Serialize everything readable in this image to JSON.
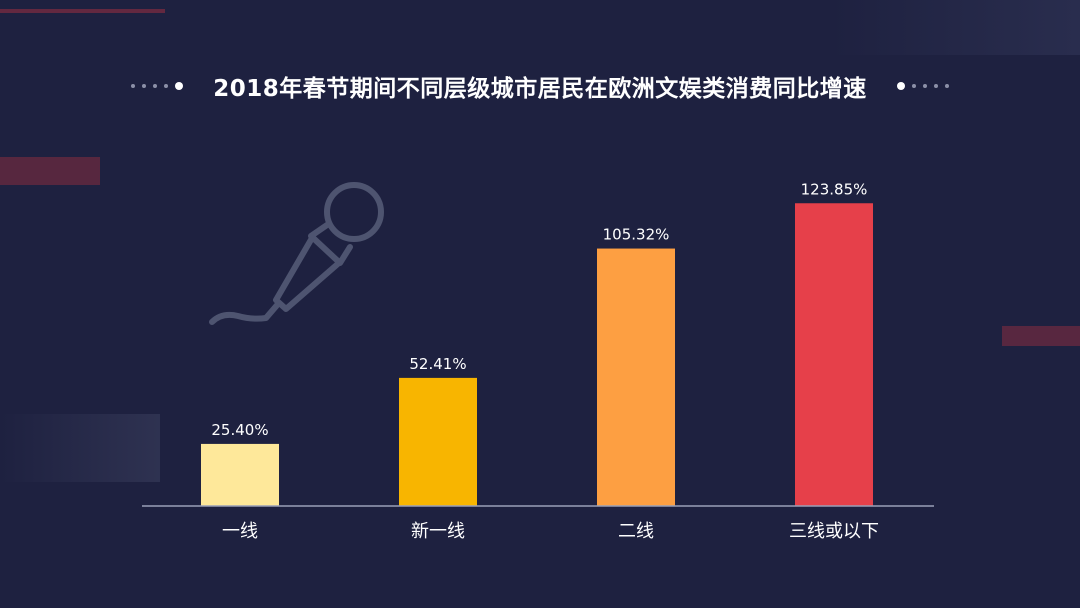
{
  "title": "2018年春节期间不同层级城市居民在欧洲文娱类消费同比增速",
  "icons": {
    "decoration": "microphone-icon"
  },
  "colors": {
    "background": "#1e2140",
    "axis": "#9aa0b8",
    "microphone": "#4e5470"
  },
  "chart_data": {
    "type": "bar",
    "title": "2018年春节期间不同层级城市居民在欧洲文娱类消费同比增速",
    "categories": [
      "一线",
      "新一线",
      "二线",
      "三线或以下"
    ],
    "values": [
      25.4,
      52.41,
      105.32,
      123.85
    ],
    "value_labels": [
      "25.40%",
      "52.41%",
      "105.32%",
      "123.85%"
    ],
    "bar_colors": [
      "#fee89a",
      "#f8b500",
      "#fd9f42",
      "#e6404a"
    ],
    "unit": "%",
    "ylim": [
      0,
      135
    ],
    "grid": false,
    "legend": "none"
  }
}
